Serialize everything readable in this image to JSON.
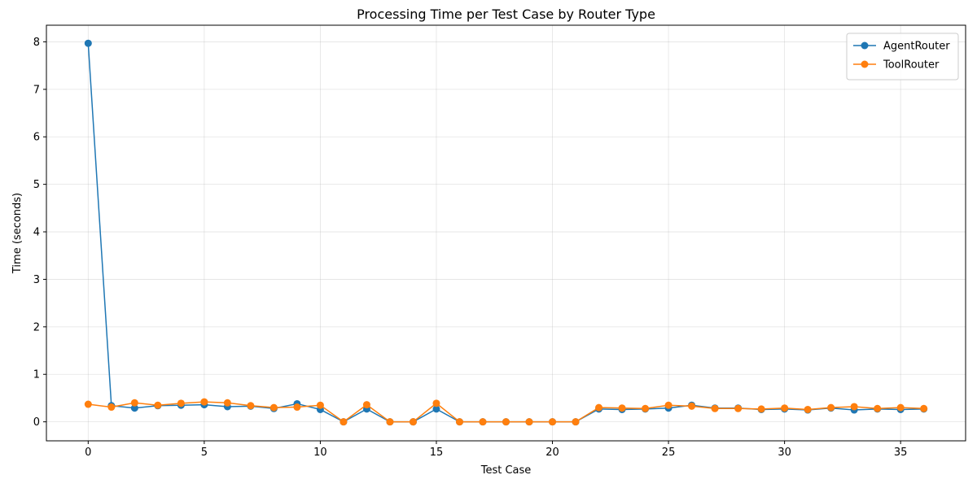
{
  "chart_data": {
    "type": "line",
    "title": "Processing Time per Test Case by Router Type",
    "xlabel": "Test Case",
    "ylabel": "Time (seconds)",
    "xlim": [
      -1.8,
      37.8
    ],
    "ylim": [
      -0.4,
      8.35
    ],
    "xticks": [
      0,
      5,
      10,
      15,
      20,
      25,
      30,
      35
    ],
    "yticks": [
      0,
      1,
      2,
      3,
      4,
      5,
      6,
      7,
      8
    ],
    "grid": true,
    "legend_position": "top-right",
    "x": [
      0,
      1,
      2,
      3,
      4,
      5,
      6,
      7,
      8,
      9,
      10,
      11,
      12,
      13,
      14,
      15,
      16,
      17,
      18,
      19,
      20,
      21,
      22,
      23,
      24,
      25,
      26,
      27,
      28,
      29,
      30,
      31,
      32,
      33,
      34,
      35,
      36
    ],
    "series": [
      {
        "name": "AgentRouter",
        "color": "#1f77b4",
        "values": [
          7.97,
          0.34,
          0.29,
          0.34,
          0.35,
          0.36,
          0.32,
          0.33,
          0.28,
          0.38,
          0.26,
          0.0,
          0.27,
          0.0,
          0.0,
          0.27,
          0.0,
          0.0,
          0.0,
          0.0,
          0.0,
          0.0,
          0.27,
          0.26,
          0.27,
          0.29,
          0.35,
          0.29,
          0.29,
          0.26,
          0.27,
          0.25,
          0.29,
          0.25,
          0.27,
          0.26,
          0.27
        ]
      },
      {
        "name": "ToolRouter",
        "color": "#ff7f0e",
        "values": [
          0.37,
          0.31,
          0.4,
          0.35,
          0.39,
          0.42,
          0.4,
          0.34,
          0.3,
          0.31,
          0.35,
          0.0,
          0.36,
          0.0,
          0.0,
          0.39,
          0.0,
          0.0,
          0.0,
          0.0,
          0.0,
          0.0,
          0.3,
          0.29,
          0.28,
          0.35,
          0.33,
          0.28,
          0.28,
          0.27,
          0.29,
          0.26,
          0.3,
          0.32,
          0.28,
          0.3,
          0.28
        ]
      }
    ]
  }
}
